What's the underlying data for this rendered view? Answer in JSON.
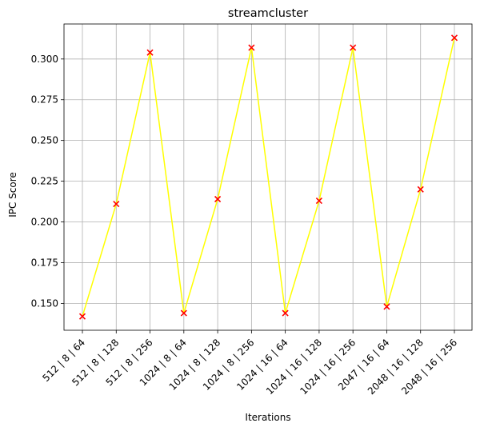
{
  "chart_data": {
    "type": "line",
    "title": "streamcluster",
    "xlabel": "Iterations",
    "ylabel": "IPC Score",
    "categories": [
      "512 | 8 | 64",
      "512 | 8 | 128",
      "512 | 8 | 256",
      "1024 | 8 | 64",
      "1024 | 8 | 128",
      "1024 | 8 | 256",
      "1024 | 16 | 64",
      "1024 | 16 | 128",
      "1024 | 16 | 256",
      "2047 | 16 | 64",
      "2048 | 16 | 128",
      "2048 | 16 | 256"
    ],
    "series": [
      {
        "values": [
          0.142,
          0.211,
          0.304,
          0.144,
          0.214,
          0.307,
          0.144,
          0.213,
          0.307,
          0.148,
          0.22,
          0.313
        ],
        "line_color": "#ffff00",
        "marker": "x",
        "marker_color": "#ff0000"
      }
    ],
    "ylim": [
      0.1335,
      0.3215
    ],
    "yticks": [
      0.15,
      0.175,
      0.2,
      0.225,
      0.25,
      0.275,
      0.3
    ],
    "ytick_labels": [
      "0.150",
      "0.175",
      "0.200",
      "0.225",
      "0.250",
      "0.275",
      "0.300"
    ],
    "grid": true,
    "legend": false
  }
}
